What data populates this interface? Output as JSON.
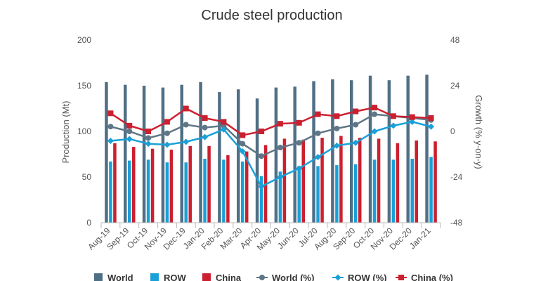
{
  "chart_data": {
    "type": "bar",
    "title": "Crude steel production",
    "ylabel_left": "Production (Mt)",
    "ylabel_right": "Growth (% y-on-y)",
    "ylim_left": [
      0,
      200
    ],
    "yticks_left": [
      0,
      50,
      100,
      150,
      200
    ],
    "ylim_right": [
      -48,
      48
    ],
    "yticks_right": [
      -48,
      -24,
      0,
      24,
      48
    ],
    "categories": [
      "Aug-19",
      "Sep-19",
      "Oct-19",
      "Nov-19",
      "Dec-19",
      "Jan-20",
      "Feb-20",
      "Mar-20",
      "Apr-20",
      "May-20",
      "Jun-20",
      "Jul-20",
      "Aug-20",
      "Sep-20",
      "Oct-20",
      "Nov-20",
      "Dec-20",
      "Jan-21"
    ],
    "bar_series": [
      {
        "name": "World",
        "color": "#4f6f85",
        "values": [
          154,
          151,
          150,
          148,
          151,
          154,
          143,
          146,
          136,
          148,
          149,
          155,
          157,
          156,
          161,
          156,
          161,
          162
        ]
      },
      {
        "name": "ROW",
        "color": "#1aa0d8",
        "values": [
          67,
          68,
          69,
          66,
          66,
          70,
          69,
          67,
          51,
          56,
          62,
          62,
          63,
          64,
          69,
          69,
          70,
          72
        ]
      },
      {
        "name": "China",
        "color": "#cc2030",
        "values": [
          87,
          83,
          81,
          80,
          84,
          84,
          74,
          78,
          85,
          92,
          91,
          93,
          95,
          93,
          92,
          87,
          90,
          89
        ]
      }
    ],
    "line_series": [
      {
        "name": "World (%)",
        "color": "#5f7686",
        "marker": "circle",
        "axis": "right",
        "values": [
          2.5,
          0.0,
          -3.5,
          -1.0,
          3.5,
          2.0,
          3.0,
          -6.5,
          -13.0,
          -8.5,
          -6.0,
          -1.0,
          1.5,
          3.5,
          9.0,
          8.0,
          7.0,
          6.0
        ]
      },
      {
        "name": "ROW (%)",
        "color": "#1aa0d8",
        "marker": "diamond",
        "axis": "right",
        "values": [
          -5.0,
          -4.0,
          -6.5,
          -7.0,
          -5.5,
          -3.0,
          1.0,
          -10.5,
          -29.0,
          -24.0,
          -19.5,
          -13.5,
          -7.5,
          -6.0,
          0.0,
          3.0,
          5.0,
          2.5
        ]
      },
      {
        "name": "China (%)",
        "color": "#cc2030",
        "marker": "square",
        "axis": "right",
        "values": [
          9.5,
          3.0,
          0.0,
          5.0,
          12.0,
          7.0,
          5.0,
          -2.0,
          0.0,
          4.0,
          4.5,
          9.0,
          8.0,
          10.5,
          12.5,
          8.0,
          7.5,
          7.0
        ]
      }
    ],
    "grid": false,
    "legend_placement": "bottom"
  }
}
